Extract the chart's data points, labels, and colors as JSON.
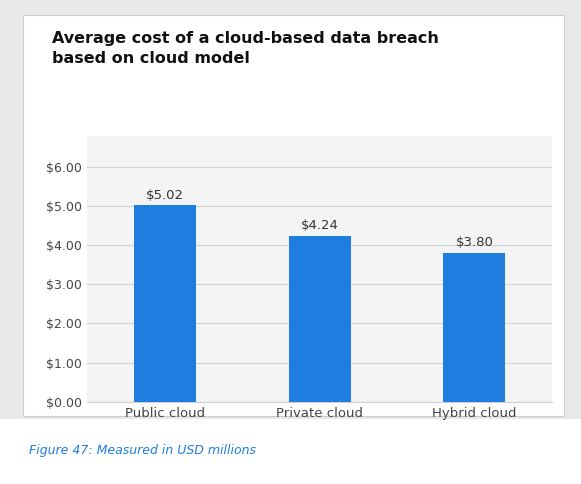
{
  "categories": [
    "Public cloud",
    "Private cloud",
    "Hybrid cloud"
  ],
  "values": [
    5.02,
    4.24,
    3.8
  ],
  "labels": [
    "$5.02",
    "$4.24",
    "$3.80"
  ],
  "bar_color": "#1f7de0",
  "title_line1": "Average cost of a cloud-based data breach",
  "title_line2": "based on cloud model",
  "ylabel_ticks": [
    "$0.00",
    "$1.00",
    "$2.00",
    "$3.00",
    "$4.00",
    "$5.00",
    "$6.00"
  ],
  "ytick_values": [
    0.0,
    1.0,
    2.0,
    3.0,
    4.0,
    5.0,
    6.0
  ],
  "ylim": [
    0,
    6.8
  ],
  "caption": "Figure 47: Measured in USD millions",
  "caption_color": "#1f7de0",
  "outer_bg_color": "#e8e8e8",
  "card_bg_color": "#f4f4f4",
  "grid_color": "#d0d0d0",
  "title_color": "#111111",
  "tick_label_color": "#444444",
  "bar_label_color": "#333333",
  "card_edge_color": "#cccccc",
  "caption_bg": "#ffffff"
}
